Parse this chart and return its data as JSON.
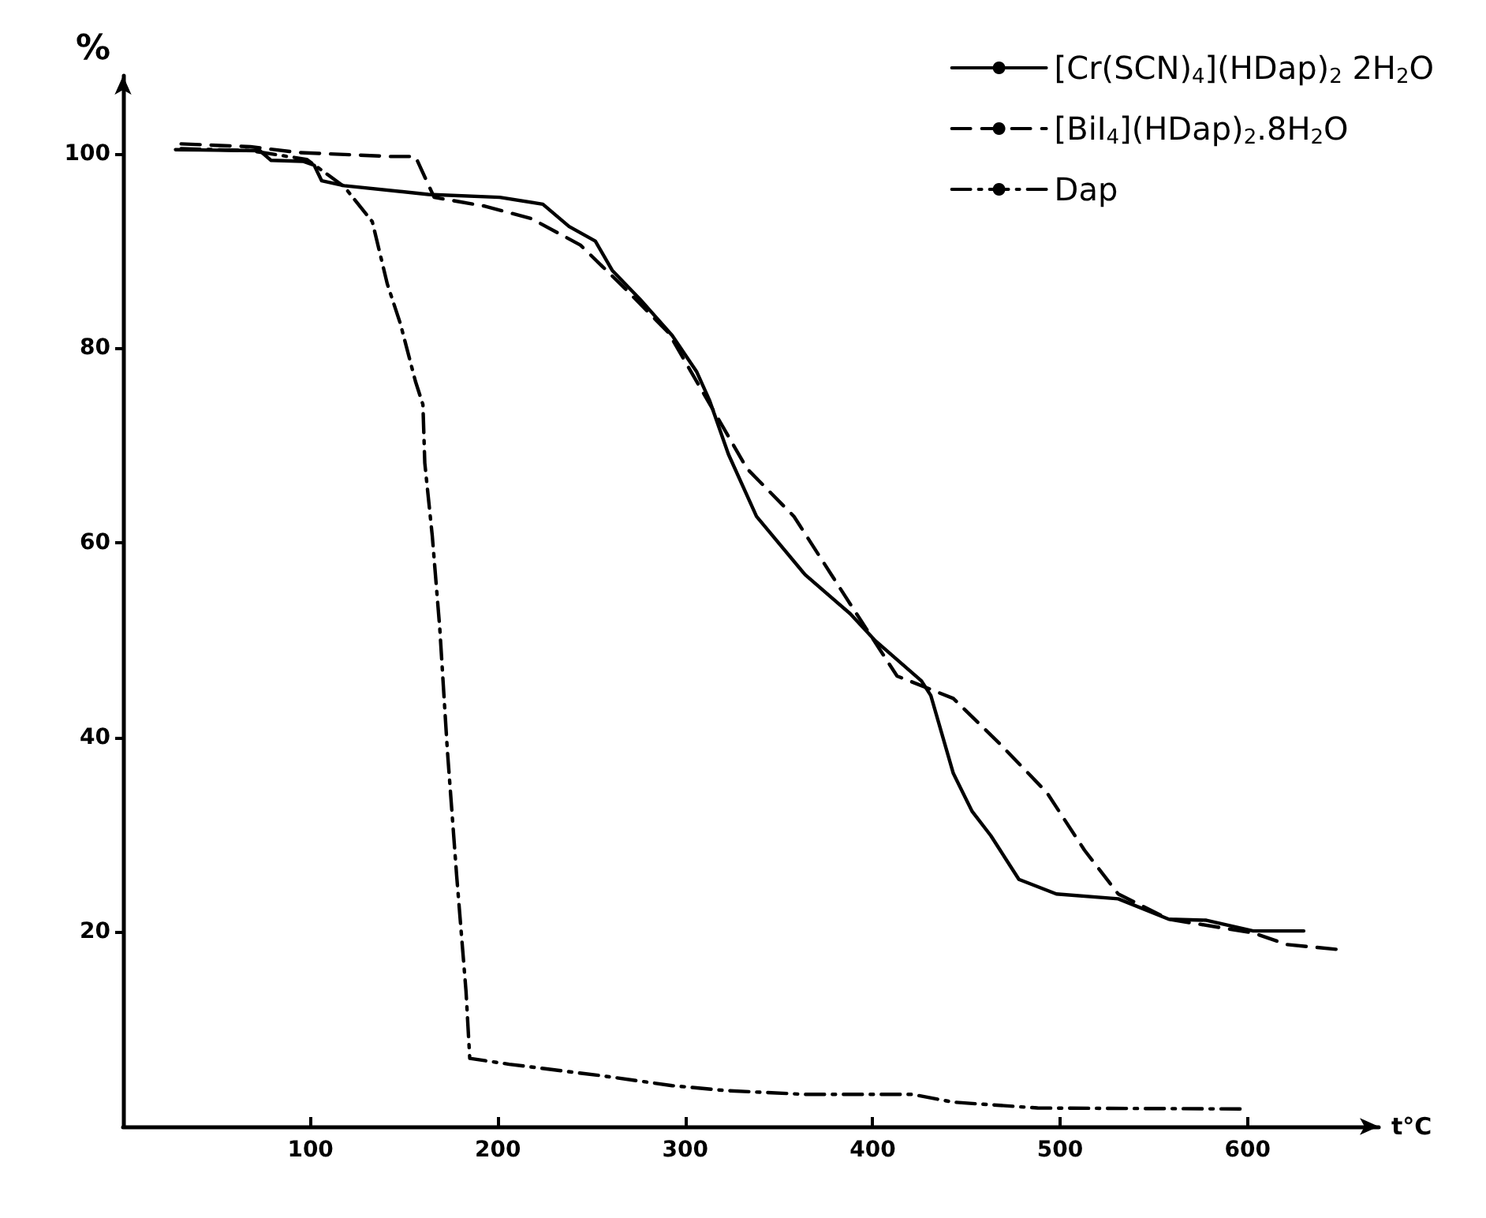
{
  "chart_data": {
    "type": "line",
    "xlabel": "t°C",
    "ylabel": "%",
    "xlim": [
      0,
      670
    ],
    "ylim": [
      0,
      108
    ],
    "xticks": [
      100,
      200,
      300,
      400,
      500,
      600
    ],
    "yticks": [
      20,
      40,
      60,
      80,
      100
    ],
    "grid": false,
    "legend": "top right",
    "marker": "none",
    "series": [
      {
        "name": "[Cr(SCN)$_{4}$](HDap)$_{2}$ 2H$_{2}$O",
        "color": "#000000",
        "line_style": "solid",
        "x": [
          28,
          73,
          79,
          96,
          102,
          106,
          118,
          163,
          201,
          224,
          238,
          252,
          261,
          276,
          293,
          306,
          313,
          323,
          338,
          364,
          388,
          401,
          426,
          431,
          443,
          453,
          463,
          478,
          498,
          531,
          558,
          578,
          603,
          630
        ],
        "values": [
          100.4,
          100.3,
          99.3,
          99.2,
          98.8,
          97.2,
          96.7,
          95.8,
          95.5,
          94.8,
          92.5,
          91,
          88,
          85,
          81.3,
          77.6,
          74.6,
          69.1,
          62.7,
          56.7,
          52.7,
          50,
          45.8,
          44.3,
          36.3,
          32.4,
          29.9,
          25.4,
          23.9,
          23.4,
          21.3,
          21.2,
          20.1,
          20.1
        ]
      },
      {
        "name": "[BiI$_{4}$](HDap)$_{2}$.8H$_{2}$O",
        "color": "#000000",
        "line_style": "dashed",
        "x": [
          31,
          68,
          94,
          143,
          156,
          166,
          193,
          218,
          244,
          268,
          291,
          333,
          358,
          378,
          388,
          413,
          443,
          468,
          493,
          513,
          531,
          558,
          603,
          621,
          648
        ],
        "values": [
          101,
          100.7,
          100.1,
          99.7,
          99.7,
          95.5,
          94.6,
          93.3,
          90.6,
          86.1,
          81.6,
          67.6,
          62.7,
          56.7,
          53.7,
          46.3,
          44,
          39.3,
          34.3,
          28.4,
          23.9,
          21.3,
          19.9,
          18.7,
          18.2
        ]
      },
      {
        "name": "Dap",
        "color": "#000000",
        "line_style": "dashdot",
        "x": [
          31,
          68,
          98,
          118,
          133,
          141,
          148,
          156,
          160,
          161,
          165,
          169,
          173,
          178,
          183,
          185,
          206,
          256,
          293,
          321,
          364,
          421,
          443,
          488,
          600
        ],
        "values": [
          100.5,
          100.3,
          99.4,
          96.6,
          93,
          86.6,
          82.5,
          76.6,
          74.2,
          68.2,
          60.7,
          51.2,
          38.8,
          25.8,
          13.9,
          7.0,
          6.4,
          5.2,
          4.2,
          3.7,
          3.3,
          3.3,
          2.5,
          1.9,
          1.8
        ]
      }
    ]
  }
}
